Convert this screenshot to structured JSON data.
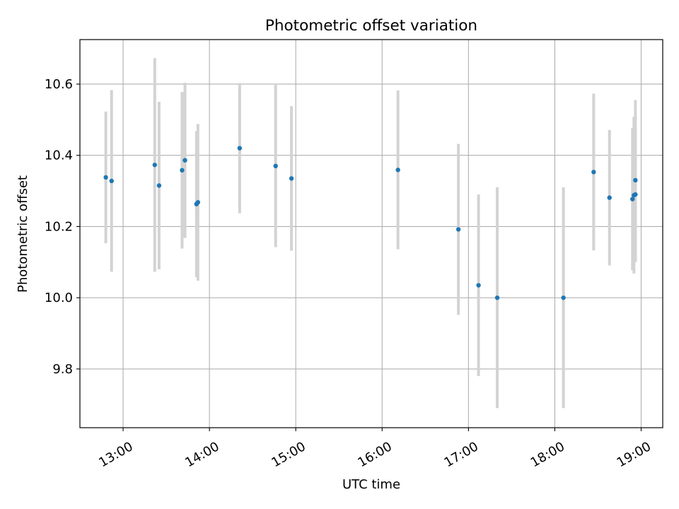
{
  "chart_data": {
    "type": "scatter",
    "title": "Photometric offset variation",
    "xlabel": "UTC time",
    "ylabel": "Photometric offset",
    "x_tick_labels": [
      "13:00",
      "14:00",
      "15:00",
      "16:00",
      "17:00",
      "18:00",
      "19:00"
    ],
    "y_tick_labels": [
      "9.8",
      "10.0",
      "10.2",
      "10.4",
      "10.6"
    ],
    "xlim": [
      "12:30",
      "19:15"
    ],
    "ylim": [
      9.635,
      10.725
    ],
    "grid": true,
    "colors": {
      "point": "#1f77b4",
      "errorbar": "#d3d3d3",
      "grid": "#b0b0b0"
    },
    "points": [
      {
        "x": "12:48",
        "y": 10.338,
        "err": 0.185
      },
      {
        "x": "12:52",
        "y": 10.328,
        "err": 0.255
      },
      {
        "x": "13:22",
        "y": 10.373,
        "err": 0.3
      },
      {
        "x": "13:25",
        "y": 10.315,
        "err": 0.235
      },
      {
        "x": "13:41",
        "y": 10.358,
        "err": 0.22
      },
      {
        "x": "13:43",
        "y": 10.386,
        "err": 0.218
      },
      {
        "x": "13:51",
        "y": 10.263,
        "err": 0.205
      },
      {
        "x": "13:52",
        "y": 10.268,
        "err": 0.22
      },
      {
        "x": "14:21",
        "y": 10.42,
        "err": 0.183
      },
      {
        "x": "14:46",
        "y": 10.37,
        "err": 0.228
      },
      {
        "x": "14:57",
        "y": 10.335,
        "err": 0.203
      },
      {
        "x": "16:11",
        "y": 10.359,
        "err": 0.223
      },
      {
        "x": "16:53",
        "y": 10.192,
        "err": 0.24
      },
      {
        "x": "17:07",
        "y": 10.035,
        "err": 0.255
      },
      {
        "x": "17:20",
        "y": 10.0,
        "err": 0.31
      },
      {
        "x": "18:06",
        "y": 10.0,
        "err": 0.31
      },
      {
        "x": "18:27",
        "y": 10.353,
        "err": 0.22
      },
      {
        "x": "18:38",
        "y": 10.281,
        "err": 0.19
      },
      {
        "x": "18:54",
        "y": 10.277,
        "err": 0.2
      },
      {
        "x": "18:55",
        "y": 10.288,
        "err": 0.22
      },
      {
        "x": "18:56",
        "y": 10.29,
        "err": 0.19
      },
      {
        "x": "18:56",
        "y": 10.33,
        "err": 0.225
      }
    ]
  }
}
